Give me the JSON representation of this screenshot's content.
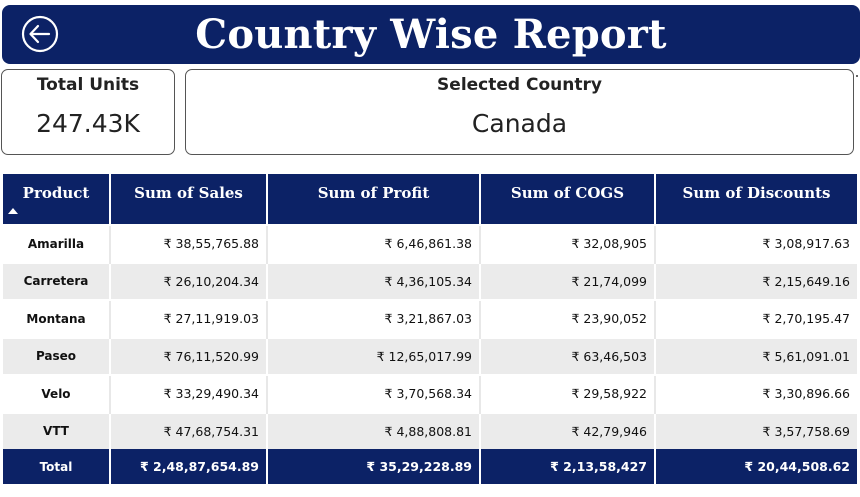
{
  "header": {
    "title": "Country Wise Report",
    "back_icon": "back-arrow-icon"
  },
  "cards": {
    "total_units": {
      "label": "Total Units",
      "value": "247.43K"
    },
    "selected_country": {
      "label": "Selected Country",
      "value": "Canada"
    }
  },
  "table": {
    "columns": [
      "Product",
      "Sum of Sales",
      "Sum of Profit",
      "Sum of COGS",
      "Sum of Discounts"
    ],
    "rows": [
      [
        "Amarilla",
        "₹ 38,55,765.88",
        "₹ 6,46,861.38",
        "₹ 32,08,905",
        "₹ 3,08,917.63"
      ],
      [
        "Carretera",
        "₹ 26,10,204.34",
        "₹ 4,36,105.34",
        "₹ 21,74,099",
        "₹ 2,15,649.16"
      ],
      [
        "Montana",
        "₹ 27,11,919.03",
        "₹ 3,21,867.03",
        "₹ 23,90,052",
        "₹ 2,70,195.47"
      ],
      [
        "Paseo",
        "₹ 76,11,520.99",
        "₹ 12,65,017.99",
        "₹ 63,46,503",
        "₹ 5,61,091.01"
      ],
      [
        "Velo",
        "₹ 33,29,490.34",
        "₹ 3,70,568.34",
        "₹ 29,58,922",
        "₹ 3,30,896.66"
      ],
      [
        "VTT",
        "₹ 47,68,754.31",
        "₹ 4,88,808.81",
        "₹ 42,79,946",
        "₹ 3,57,758.69"
      ]
    ],
    "total": [
      "Total",
      "₹ 2,48,87,654.89",
      "₹ 35,29,228.89",
      "₹ 2,13,58,427",
      "₹ 20,44,508.62"
    ]
  },
  "colors": {
    "header_bg": "#0c2266",
    "row_alt": "#ebebeb"
  }
}
